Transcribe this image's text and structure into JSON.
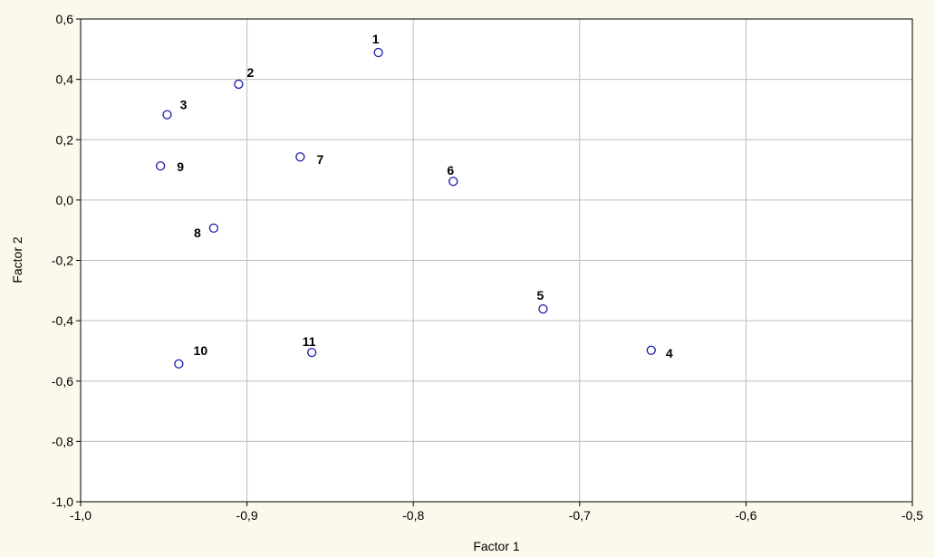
{
  "chart_data": {
    "type": "scatter",
    "xlabel": "Factor 1",
    "ylabel": "Factor 2",
    "xlim": [
      -1.0,
      -0.5
    ],
    "ylim": [
      -1.0,
      0.6
    ],
    "xticks": [
      -1.0,
      -0.9,
      -0.8,
      -0.7,
      -0.6,
      -0.5
    ],
    "yticks": [
      0.6,
      0.4,
      0.2,
      0.0,
      -0.2,
      -0.4,
      -0.6,
      -0.8,
      -1.0
    ],
    "xtick_labels": [
      "-1,0",
      "-0,9",
      "-0,8",
      "-0,7",
      "-0,6",
      "-0,5"
    ],
    "ytick_labels": [
      "0,6",
      "0,4",
      "0,2",
      "0,0",
      "-0,2",
      "-0,4",
      "-0,6",
      "-0,8",
      "-1,0"
    ],
    "grid": true,
    "colors": {
      "background": "#fbf9ec",
      "plot_area": "#ffffff",
      "marker": "#1a1aa6",
      "grid": "#bdbdbd"
    },
    "points": [
      {
        "label": "1",
        "x": -0.821,
        "y": 0.489
      },
      {
        "label": "2",
        "x": -0.905,
        "y": 0.384
      },
      {
        "label": "3",
        "x": -0.948,
        "y": 0.283
      },
      {
        "label": "4",
        "x": -0.657,
        "y": -0.498
      },
      {
        "label": "5",
        "x": -0.722,
        "y": -0.361
      },
      {
        "label": "6",
        "x": -0.776,
        "y": 0.062
      },
      {
        "label": "7",
        "x": -0.868,
        "y": 0.143
      },
      {
        "label": "8",
        "x": -0.92,
        "y": -0.093
      },
      {
        "label": "9",
        "x": -0.952,
        "y": 0.113
      },
      {
        "label": "10",
        "x": -0.941,
        "y": -0.543
      },
      {
        "label": "11",
        "x": -0.861,
        "y": -0.505
      }
    ]
  }
}
